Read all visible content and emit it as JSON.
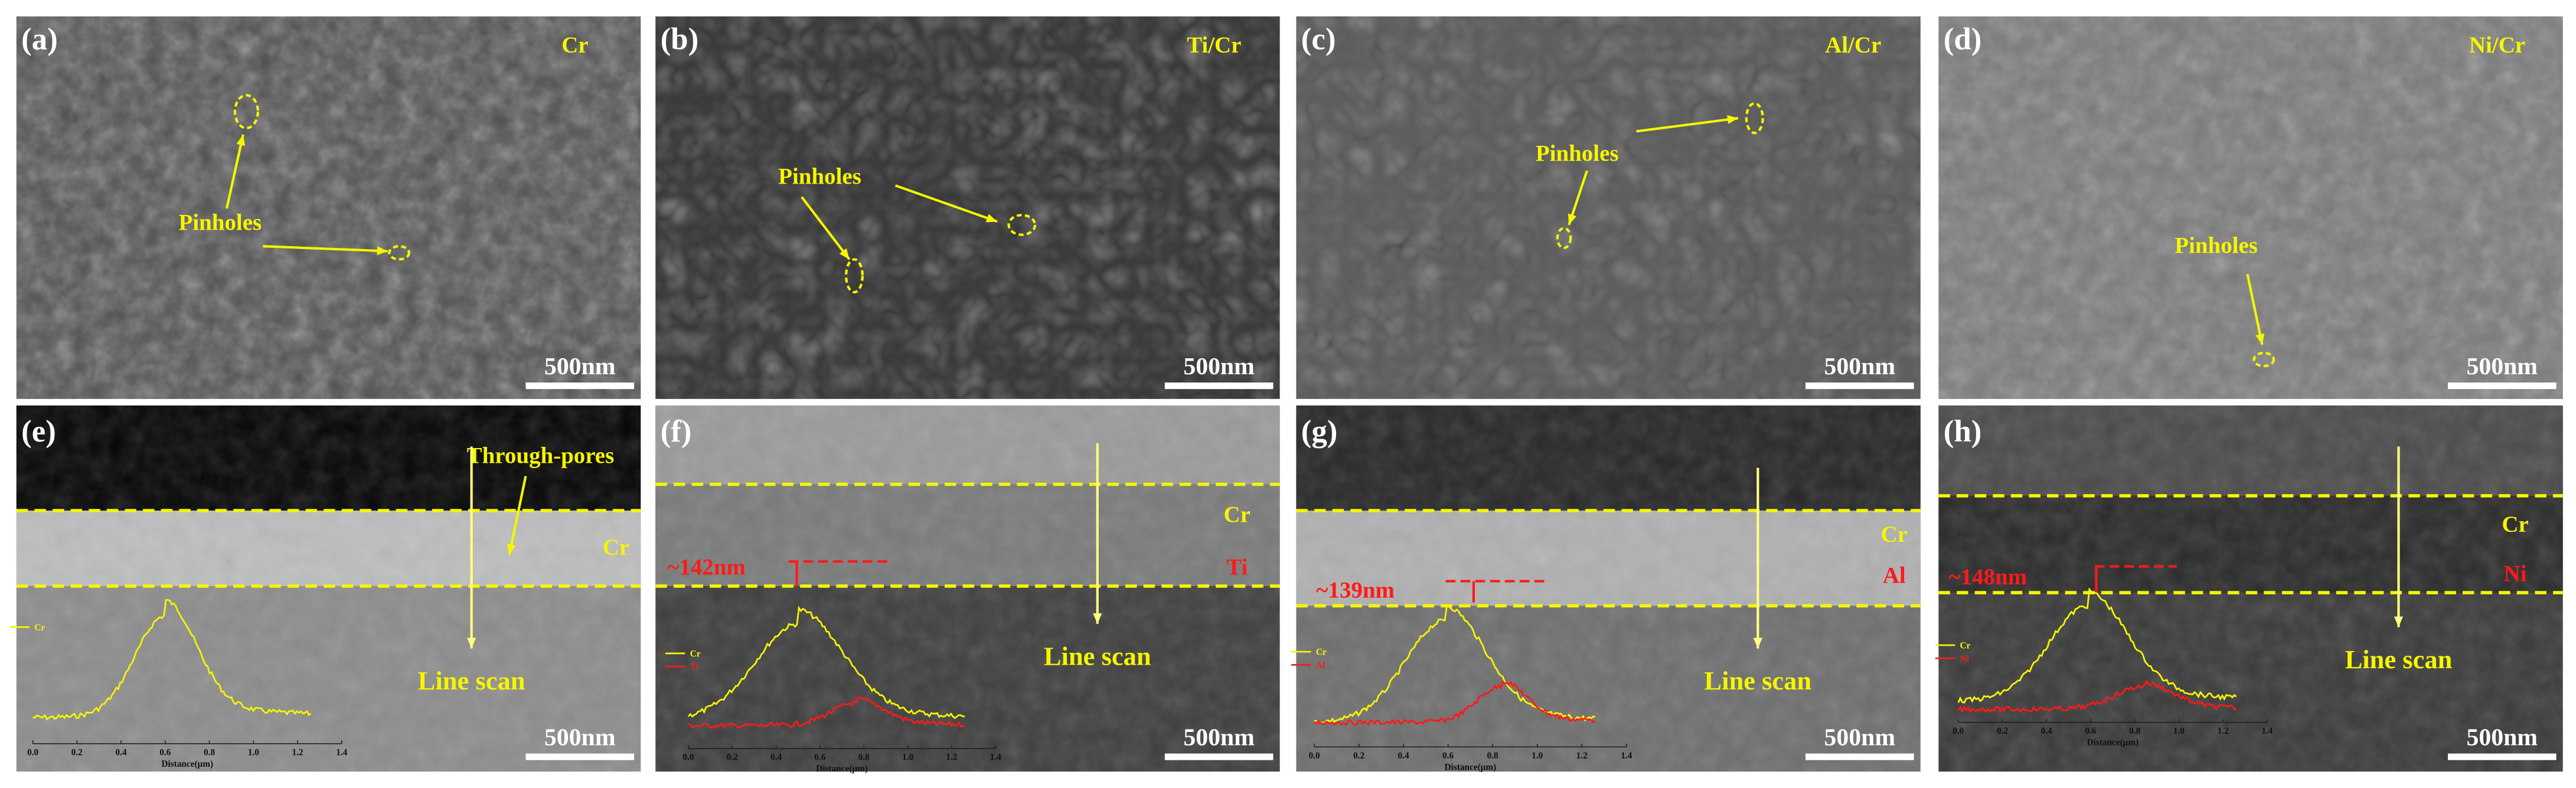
{
  "top_panels": [
    {
      "label": "(a)",
      "sample": "Cr",
      "annotation": "Pinholes",
      "scale_bar": "500nm"
    },
    {
      "label": "(b)",
      "sample": "Ti/Cr",
      "annotation": "Pinholes",
      "scale_bar": "500nm"
    },
    {
      "label": "(c)",
      "sample": "Al/Cr",
      "annotation": "Pinholes",
      "scale_bar": "500nm"
    },
    {
      "label": "(d)",
      "sample": "Ni/Cr",
      "annotation": "Pinholes",
      "scale_bar": "500nm"
    }
  ],
  "bottom_panels": [
    {
      "label": "(e)",
      "layers": [
        "Cr"
      ],
      "note": "Through-pores",
      "line_scan": "Line scan",
      "legend": [
        "Cr"
      ],
      "x_ticks": [
        "0.0",
        "0.2",
        "0.4",
        "0.6",
        "0.8",
        "1.0",
        "1.2",
        "1.4"
      ],
      "x_label": "Distance(μm)",
      "scale_bar": "500nm"
    },
    {
      "label": "(f)",
      "layers": [
        "Cr",
        "Ti"
      ],
      "thickness": "~142nm",
      "line_scan": "Line scan",
      "legend": [
        "Cr",
        "Ti"
      ],
      "x_ticks": [
        "0.0",
        "0.2",
        "0.4",
        "0.6",
        "0.8",
        "1.0",
        "1.2",
        "1.4"
      ],
      "x_label": "Distance(μm)",
      "scale_bar": "500nm"
    },
    {
      "label": "(g)",
      "layers": [
        "Cr",
        "Al"
      ],
      "thickness": "~139nm",
      "line_scan": "Line scan",
      "legend": [
        "Cr",
        "Al"
      ],
      "x_ticks": [
        "0.0",
        "0.2",
        "0.4",
        "0.6",
        "0.8",
        "1.0",
        "1.2",
        "1.4"
      ],
      "x_label": "Distance(μm)",
      "scale_bar": "500nm"
    },
    {
      "label": "(h)",
      "layers": [
        "Cr",
        "Ni"
      ],
      "thickness": "~148nm",
      "line_scan": "Line scan",
      "legend": [
        "Cr",
        "Ni"
      ],
      "x_ticks": [
        "0.0",
        "0.2",
        "0.4",
        "0.6",
        "0.8",
        "1.0",
        "1.2",
        "1.4"
      ],
      "x_label": "Distance(μm)",
      "scale_bar": "500nm"
    }
  ]
}
